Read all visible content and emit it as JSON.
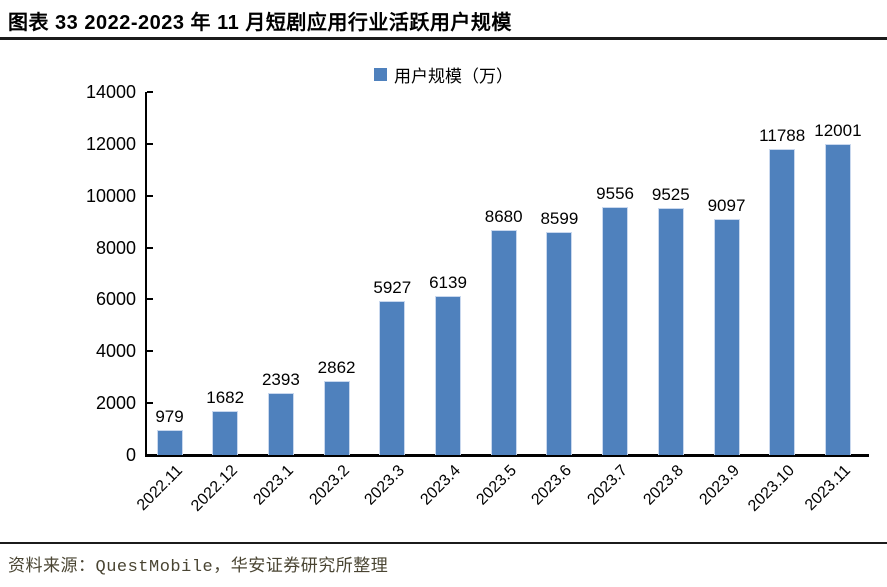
{
  "header": {
    "title": "图表 33 2022-2023 年 11 月短剧应用行业活跃用户规模"
  },
  "footer": {
    "source": "资料来源：QuestMobile，华安证券研究所整理"
  },
  "colors": {
    "accent_blue": "#4f81bd",
    "bar_border": "#c9d8ee",
    "rule_black": "#1b1b1b",
    "source_text": "#4a4533"
  },
  "chart_data": {
    "type": "bar",
    "title": "",
    "xlabel": "",
    "ylabel": "",
    "legend": [
      "用户规模（万）"
    ],
    "legend_position": "top-center",
    "grid": false,
    "categories": [
      "2022.11",
      "2022.12",
      "2023.1",
      "2023.2",
      "2023.3",
      "2023.4",
      "2023.5",
      "2023.6",
      "2023.7",
      "2023.8",
      "2023.9",
      "2023.10",
      "2023.11"
    ],
    "values": [
      979,
      1682,
      2393,
      2862,
      5927,
      6139,
      8680,
      8599,
      9556,
      9525,
      9097,
      11788,
      12001
    ],
    "ylim": [
      0,
      14000
    ],
    "ytick_step": 2000,
    "data_labels": true,
    "bar_color": "#4f81bd"
  }
}
